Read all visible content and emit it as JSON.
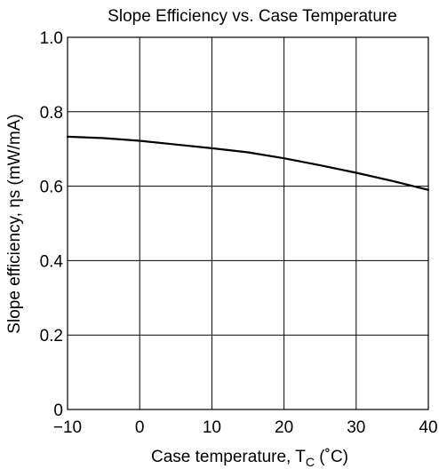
{
  "chart_data": {
    "type": "line",
    "title": "Slope Efficiency vs. Case Temperature",
    "xlabel_prefix": "Case temperature,  T",
    "xlabel_sub": "C",
    "xlabel_suffix": " (˚C)",
    "ylabel": "Slope efficiency,  ηs  (mW/mA)",
    "xlim": [
      -10,
      40
    ],
    "ylim": [
      0,
      1.0
    ],
    "x_ticks": [
      -10,
      0,
      10,
      20,
      30,
      40
    ],
    "x_tick_labels": [
      "−10",
      "0",
      "10",
      "20",
      "30",
      "40"
    ],
    "y_ticks": [
      0,
      0.2,
      0.4,
      0.6,
      0.8,
      1.0
    ],
    "y_tick_labels": [
      "0",
      "0.2",
      "0.4",
      "0.6",
      "0.8",
      "1.0"
    ],
    "grid": true,
    "series": [
      {
        "x": [
          -10,
          -5,
          0,
          5,
          10,
          15,
          20,
          25,
          30,
          35,
          40
        ],
        "y": [
          0.733,
          0.729,
          0.722,
          0.712,
          0.702,
          0.691,
          0.675,
          0.656,
          0.636,
          0.614,
          0.59
        ]
      }
    ],
    "line_color": "#000000"
  }
}
